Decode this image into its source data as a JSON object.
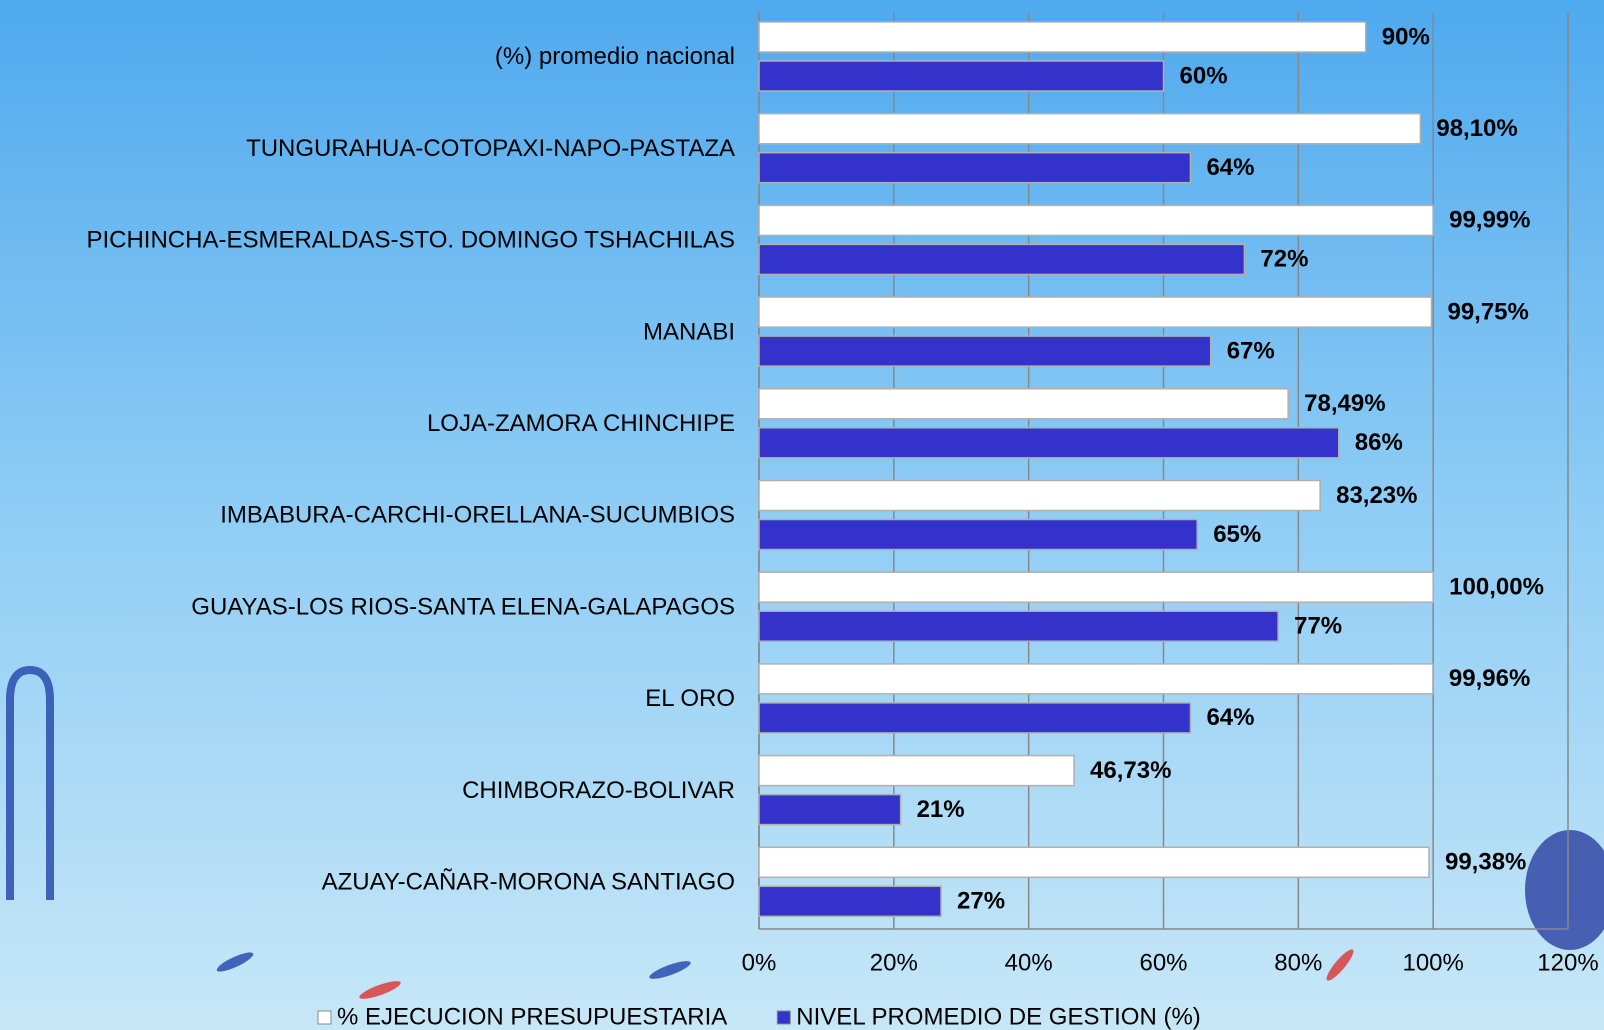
{
  "chart_data": {
    "type": "barh",
    "categories": [
      "(%) promedio nacional",
      "TUNGURAHUA-COTOPAXI-NAPO-PASTAZA",
      "PICHINCHA-ESMERALDAS-STO. DOMINGO TSHACHILAS",
      "MANABI",
      "LOJA-ZAMORA CHINCHIPE",
      "IMBABURA-CARCHI-ORELLANA-SUCUMBIOS",
      "GUAYAS-LOS RIOS-SANTA ELENA-GALAPAGOS",
      "EL ORO",
      "CHIMBORAZO-BOLIVAR",
      "AZUAY-CAÑAR-MORONA SANTIAGO"
    ],
    "series": [
      {
        "name": "% EJECUCION PRESUPUESTARIA",
        "color": "#ffffff",
        "values": [
          90,
          98.1,
          99.99,
          99.75,
          78.49,
          83.23,
          100,
          99.96,
          46.73,
          99.38
        ],
        "value_labels": [
          "90%",
          "98,10%",
          "99,99%",
          "99,75%",
          "78,49%",
          "83,23%",
          "100,00%",
          "99,96%",
          "46,73%",
          "99,38%"
        ]
      },
      {
        "name": "NIVEL PROMEDIO DE GESTION (%)",
        "color": "#3333cc",
        "values": [
          60,
          64,
          72,
          67,
          86,
          65,
          77,
          64,
          21,
          27
        ],
        "value_labels": [
          "60%",
          "64%",
          "72%",
          "67%",
          "86%",
          "65%",
          "77%",
          "64%",
          "21%",
          "27%"
        ]
      }
    ],
    "xlim": [
      0,
      120
    ],
    "xticks": [
      {
        "value": 0,
        "label": "0%"
      },
      {
        "value": 20,
        "label": "20%"
      },
      {
        "value": 40,
        "label": "40%"
      },
      {
        "value": 60,
        "label": "60%"
      },
      {
        "value": 80,
        "label": "80%"
      },
      {
        "value": 100,
        "label": "100%"
      },
      {
        "value": 120,
        "label": "120%"
      }
    ],
    "grid": true,
    "legend": "bottom"
  }
}
